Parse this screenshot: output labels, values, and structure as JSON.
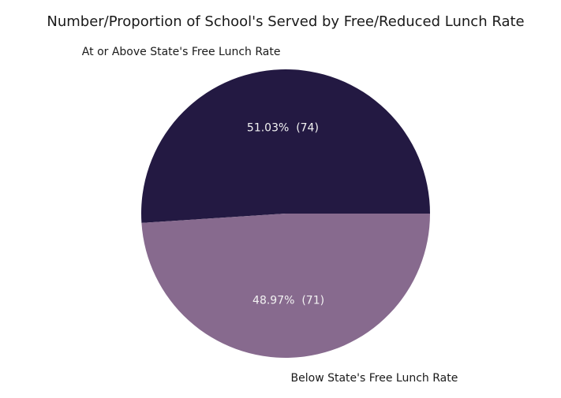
{
  "chart_data": {
    "type": "pie",
    "title": "Number/Proportion of School's Served by Free/Reduced Lunch Rate",
    "slices": [
      {
        "label": "At or Above State's Free Lunch Rate",
        "value": 74,
        "percent": 51.03,
        "display": "51.03%  (74)",
        "color": "#231942"
      },
      {
        "label": "Below State's Free Lunch Rate",
        "value": 71,
        "percent": 48.97,
        "display": "48.97%  (71)",
        "color": "#876a8e"
      }
    ],
    "start_angle_deg": 0,
    "direction": "counterclockwise",
    "legend": "none"
  }
}
